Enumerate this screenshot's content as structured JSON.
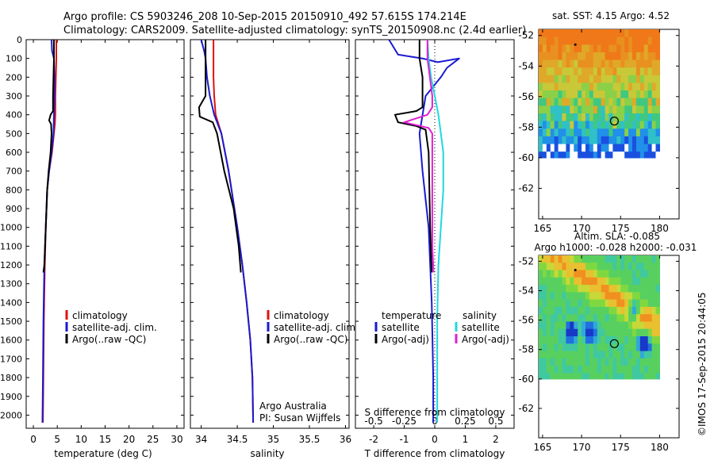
{
  "header": {
    "line1": "Argo profile: CS 5903246_208 10-Sep-2015 20150910_492 57.615S 174.214E",
    "line2": "Climatology: CARS2009. Satellite-adjusted climatology: synTS_20150908.nc (2.4d earlier)"
  },
  "footer": {
    "credit": "©IMOS 17-Sep-2015 20:44:05"
  },
  "depth_ticks": [
    "0",
    "100",
    "200",
    "300",
    "400",
    "500",
    "600",
    "700",
    "800",
    "900",
    "1000",
    "1100",
    "1200",
    "1300",
    "1400",
    "1500",
    "1600",
    "1700",
    "1800",
    "1900",
    "2000"
  ],
  "colors": {
    "climatology": "#e01010",
    "satellite": "#1a1ad0",
    "argo": "#000000",
    "sat_salinity": "#20d8e0",
    "argo_salinity_adj": "#e020d0"
  },
  "chart_data": [
    {
      "type": "line",
      "id": "temperature",
      "xlabel": "temperature (deg C)",
      "xlim": [
        -1.5,
        31.5
      ],
      "xticks": [
        0,
        5,
        10,
        15,
        20,
        25,
        30
      ],
      "xtick_labels": [
        "0",
        "5",
        "10",
        "15",
        "20",
        "25",
        "30"
      ],
      "ylim": [
        2070,
        0
      ],
      "legend": [
        "climatology",
        "satellite-adj. clim.",
        "Argo(..raw -QC)"
      ],
      "series": [
        {
          "name": "climatology",
          "color": "#e01010",
          "x": [
            4.8,
            4.8,
            4.7,
            4.6,
            4.6,
            4.5,
            4.3,
            3.9,
            3.3,
            2.9,
            2.6,
            2.4,
            2.2,
            2.1,
            2.0
          ],
          "y": [
            0,
            100,
            200,
            300,
            400,
            450,
            500,
            600,
            700,
            800,
            1000,
            1200,
            1500,
            1800,
            2040
          ]
        },
        {
          "name": "satellite-adj. clim.",
          "color": "#1a1ad0",
          "x": [
            3.8,
            3.9,
            4.3,
            4.4,
            4.4,
            4.3,
            4.2,
            3.8,
            3.3,
            2.9,
            2.6,
            2.3,
            2.1,
            2.0,
            1.9
          ],
          "y": [
            0,
            60,
            100,
            200,
            300,
            400,
            500,
            600,
            700,
            800,
            1000,
            1200,
            1500,
            1800,
            2040
          ]
        },
        {
          "name": "Argo(..raw -QC)",
          "color": "#000000",
          "x": [
            4.3,
            4.3,
            4.2,
            4.1,
            4.1,
            3.6,
            3.3,
            3.7,
            3.8,
            3.6,
            3.2,
            2.9,
            2.6,
            2.3,
            2.1
          ],
          "y": [
            0,
            100,
            200,
            300,
            380,
            400,
            430,
            450,
            500,
            600,
            700,
            800,
            1000,
            1200,
            1240
          ]
        }
      ]
    },
    {
      "type": "line",
      "id": "salinity",
      "xlabel": "salinity",
      "xlim": [
        33.85,
        36.05
      ],
      "xticks": [
        34,
        34.5,
        35,
        35.5,
        36
      ],
      "xtick_labels": [
        "34",
        "34.5",
        "35",
        "35.5",
        "36"
      ],
      "ylim": [
        2070,
        0
      ],
      "legend": [
        "climatology",
        "satellite-adj. clim.",
        "Argo(..raw -QC)"
      ],
      "annotation": [
        "Argo Australia",
        "PI: Susan Wijffels"
      ],
      "series": [
        {
          "name": "climatology",
          "color": "#e01010",
          "x": [
            34.17,
            34.17,
            34.17,
            34.18,
            34.2,
            34.28,
            34.38,
            34.5,
            34.57,
            34.63,
            34.68,
            34.71,
            34.72
          ],
          "y": [
            0,
            100,
            200,
            300,
            400,
            500,
            700,
            1000,
            1200,
            1400,
            1600,
            1800,
            2040
          ]
        },
        {
          "name": "satellite-adj. clim.",
          "color": "#1a1ad0",
          "x": [
            34.0,
            34.04,
            34.06,
            34.08,
            34.12,
            34.18,
            34.28,
            34.38,
            34.5,
            34.57,
            34.63,
            34.68,
            34.71,
            34.72
          ],
          "y": [
            0,
            60,
            100,
            200,
            300,
            400,
            500,
            700,
            1000,
            1200,
            1400,
            1600,
            1800,
            2040
          ]
        },
        {
          "name": "Argo(..raw -QC)",
          "color": "#000000",
          "x": [
            34.06,
            34.06,
            34.06,
            34.06,
            33.97,
            33.98,
            34.16,
            34.22,
            34.32,
            34.45,
            34.52,
            34.55
          ],
          "y": [
            0,
            100,
            200,
            300,
            360,
            410,
            440,
            500,
            700,
            900,
            1100,
            1240
          ]
        }
      ]
    },
    {
      "type": "line",
      "id": "difference",
      "xlabel": "T difference from climatology",
      "xlabel_top": "S difference from climatology",
      "xlim": [
        -2.6,
        2.6
      ],
      "xticks": [
        -2,
        -1,
        0,
        1,
        2
      ],
      "xtick_labels": [
        "-2",
        "-1",
        "0",
        "1",
        "2"
      ],
      "xticks_s": [
        -0.5,
        -0.25,
        0,
        0.25,
        0.5
      ],
      "xtick_labels_s": [
        "-0.5",
        "-0.25",
        "0",
        "0.25",
        "0.5"
      ],
      "ylim": [
        2070,
        0
      ],
      "legend_headers": [
        "temperature",
        "salinity"
      ],
      "legend": [
        "satellite",
        "Argo(-adj)",
        "satellite",
        "Argo(-adj)"
      ],
      "series": [
        {
          "name": "satellite",
          "group": "temperature",
          "color": "#1a1ad0",
          "x": [
            -1.5,
            -1.2,
            -0.4,
            0.1,
            0.8,
            0.4,
            0.2,
            -0.3,
            -0.5,
            -0.4,
            -0.2,
            -0.1,
            -0.05,
            -0.05
          ],
          "y": [
            0,
            80,
            100,
            120,
            100,
            150,
            200,
            300,
            500,
            700,
            1000,
            1400,
            1800,
            2040
          ]
        },
        {
          "name": "Argo(-adj)",
          "group": "temperature",
          "color": "#000000",
          "x": [
            -0.5,
            -0.5,
            -0.4,
            -0.4,
            -0.4,
            -0.6,
            -1.3,
            -1.2,
            -0.6,
            -0.3,
            -0.2,
            -0.15,
            -0.1
          ],
          "y": [
            0,
            100,
            200,
            300,
            360,
            380,
            400,
            440,
            460,
            480,
            600,
            1000,
            1240
          ]
        },
        {
          "name": "satellite",
          "group": "salinity",
          "color": "#20d8e0",
          "x": [
            -0.06,
            -0.05,
            -0.03,
            0.0,
            0.03,
            0.05,
            0.07,
            0.07,
            0.05,
            0.03,
            0.02,
            0.02,
            0.02
          ],
          "y": [
            0,
            100,
            200,
            300,
            400,
            500,
            600,
            800,
            1000,
            1200,
            1500,
            1800,
            2040
          ]
        },
        {
          "name": "Argo(-adj)",
          "group": "salinity",
          "color": "#e020d0",
          "x": [
            -0.06,
            -0.06,
            -0.04,
            -0.02,
            -0.02,
            -0.06,
            -0.25,
            -0.05,
            -0.02,
            -0.02,
            -0.02,
            -0.02,
            -0.01
          ],
          "y": [
            0,
            100,
            200,
            300,
            360,
            400,
            440,
            470,
            500,
            700,
            900,
            1100,
            1240
          ]
        }
      ]
    },
    {
      "type": "heatmap",
      "id": "sst_map",
      "title": "sat. SST: 4.15  Argo: 4.52",
      "xlim": [
        164.5,
        182.5
      ],
      "ylim": [
        -64,
        -51.6
      ],
      "xticks": [
        165,
        170,
        175,
        180
      ],
      "xtick_labels": [
        "165",
        "170",
        "175",
        "180"
      ],
      "yticks": [
        -52,
        -54,
        -56,
        -58,
        -60,
        -62
      ],
      "ytick_labels": [
        "-52",
        "-54",
        "-56",
        "-58",
        "-60",
        "-62"
      ],
      "data_extent": {
        "lon": [
          164.5,
          180
        ],
        "lat": [
          -60,
          -51.6
        ]
      },
      "float_marker": {
        "lon": 174.2,
        "lat": -57.6
      },
      "prev_marker": {
        "lon": 169.2,
        "lat": -52.6
      }
    },
    {
      "type": "heatmap",
      "id": "sla_map",
      "title": "Altim. SLA: -0.085",
      "subtitle": "Argo h1000: -0.028  h2000: -0.031",
      "xlim": [
        164.5,
        182.5
      ],
      "ylim": [
        -64,
        -51.6
      ],
      "xticks": [
        165,
        170,
        175,
        180
      ],
      "xtick_labels": [
        "165",
        "170",
        "175",
        "180"
      ],
      "yticks": [
        -52,
        -54,
        -56,
        -58,
        -60,
        -62
      ],
      "ytick_labels": [
        "-52",
        "-54",
        "-56",
        "-58",
        "-60",
        "-62"
      ],
      "data_extent": {
        "lon": [
          164.5,
          180
        ],
        "lat": [
          -60,
          -51.6
        ]
      },
      "float_marker": {
        "lon": 174.2,
        "lat": -57.6
      },
      "prev_marker": {
        "lon": 169.2,
        "lat": -52.6
      }
    }
  ]
}
